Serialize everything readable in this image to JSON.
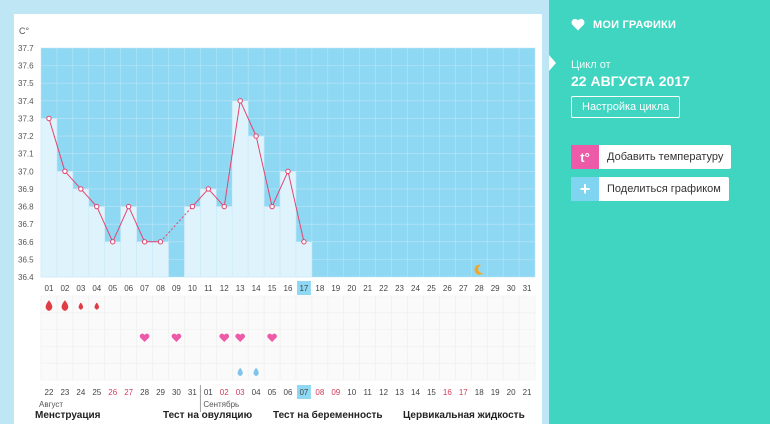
{
  "chart_data": {
    "type": "line",
    "unit_label": "С°",
    "y_ticks": [
      "36.4",
      "36.5",
      "36.6",
      "36.7",
      "36.8",
      "36.9",
      "37.0",
      "37.1",
      "37.2",
      "37.3",
      "37.4",
      "37.5",
      "37.6",
      "37.7"
    ],
    "ylim": [
      36.4,
      37.7
    ],
    "days": [
      "01",
      "02",
      "03",
      "04",
      "05",
      "06",
      "07",
      "08",
      "09",
      "10",
      "11",
      "12",
      "13",
      "14",
      "15",
      "16",
      "17",
      "18",
      "19",
      "20",
      "21",
      "22",
      "23",
      "24",
      "25",
      "26",
      "27",
      "28",
      "29",
      "30",
      "31"
    ],
    "temperatures": [
      37.3,
      37.0,
      36.9,
      36.8,
      36.6,
      36.8,
      36.6,
      36.6,
      null,
      36.8,
      36.9,
      36.8,
      37.4,
      37.2,
      36.8,
      37.0,
      36.6,
      null,
      null,
      null,
      null,
      null,
      null,
      null,
      null,
      null,
      null,
      null,
      null,
      null,
      null
    ],
    "current_day": "17",
    "dates": [
      "22",
      "23",
      "24",
      "25",
      "26",
      "27",
      "28",
      "29",
      "30",
      "31",
      "01",
      "02",
      "03",
      "04",
      "05",
      "06",
      "07",
      "08",
      "09",
      "10",
      "11",
      "12",
      "13",
      "14",
      "15",
      "16",
      "17",
      "18",
      "19",
      "20",
      "21"
    ],
    "red_dates": [
      4,
      5,
      11,
      12,
      17,
      18,
      25,
      26
    ],
    "current_date": "07",
    "month_labels": [
      {
        "text": "Август",
        "index": 0
      },
      {
        "text": "Сентябрь",
        "index": 10
      }
    ],
    "menstruation": [
      3,
      3,
      2,
      2,
      0,
      0,
      0,
      0,
      0,
      0,
      0,
      0,
      0,
      0,
      0,
      0,
      0,
      0,
      0,
      0,
      0,
      0,
      0,
      0,
      0,
      0,
      0,
      0,
      0,
      0,
      0
    ],
    "ovulation_hearts": [
      6,
      8,
      11,
      12,
      14
    ],
    "cervical_drops": [
      12,
      13
    ],
    "moon_day_index": 27
  },
  "categories": [
    "Менструация",
    "Тест на овуляцию",
    "Тест на беременность",
    "Цервикальная жидкость"
  ],
  "sidebar": {
    "my_charts": "МОИ ГРАФИКИ",
    "cycle_label": "Цикл от",
    "cycle_date": "22 АВГУСТА 2017",
    "cycle_settings": "Настройка цикла",
    "add_temp_icon": "t°",
    "add_temp": "Добавить температуру",
    "share": "Поделиться графиком"
  },
  "colors": {
    "sidebar": "#3fd5c1",
    "sky": "#8fd8f3",
    "bar": "#dff3fd",
    "line": "#e2456e",
    "heart": "#ec5aa8",
    "drop_red": "#e03c46",
    "drop_blue": "#7fc4ea",
    "moon": "#f5a623"
  }
}
